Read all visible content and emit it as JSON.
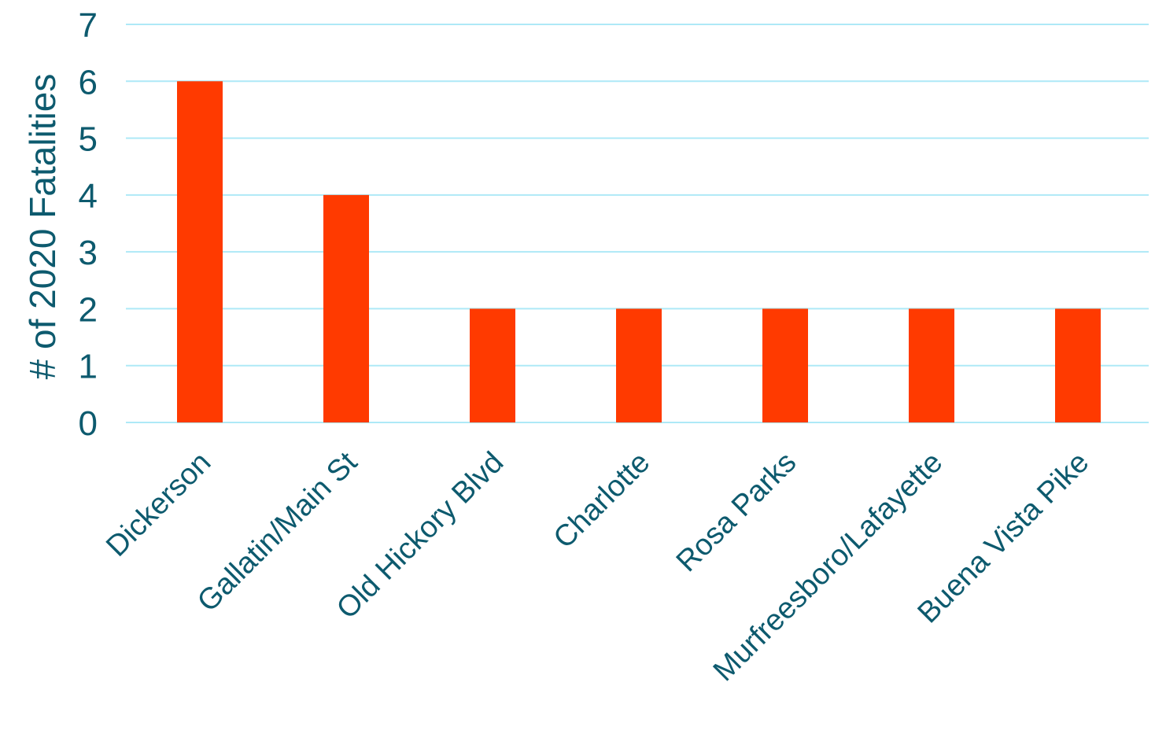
{
  "chart_data": {
    "type": "bar",
    "title": "",
    "xlabel": "",
    "ylabel": "# of 2020 Fatalities",
    "categories": [
      "Dickerson",
      "Gallatin/Main St",
      "Old Hickory Blvd",
      "Charlotte",
      "Rosa Parks",
      "Murfreesboro/Lafayette",
      "Buena Vista Pike"
    ],
    "values": [
      6,
      4,
      2,
      2,
      2,
      2,
      2
    ],
    "ylim": [
      0,
      7
    ],
    "yticks": [
      "0",
      "1",
      "2",
      "3",
      "4",
      "5",
      "6",
      "7"
    ],
    "grid": true,
    "legend": "none",
    "colors": {
      "bar": "#ff3a00",
      "grid": "#aee9f7",
      "axis_text": "#0d5a6e"
    }
  }
}
